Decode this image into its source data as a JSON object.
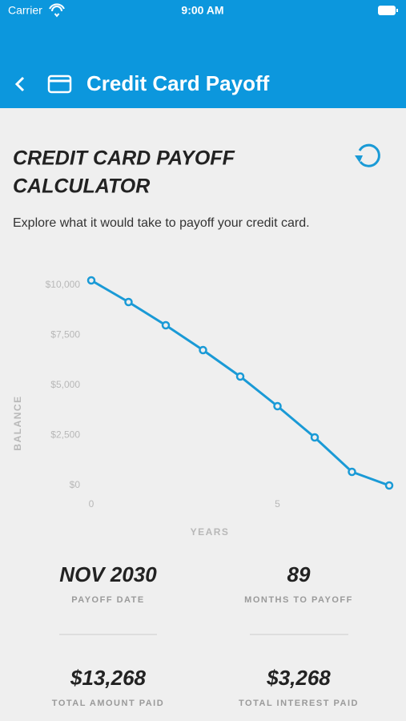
{
  "status_bar": {
    "carrier": "Carrier",
    "time": "9:00 AM"
  },
  "nav": {
    "title": "Credit Card Payoff"
  },
  "heading": "CREDIT CARD PAYOFF\nCALCULATOR",
  "heading_lines": [
    "CREDIT CARD PAYOFF",
    "CALCULATOR"
  ],
  "description": "Explore what it would take to payoff your credit card.",
  "chart_data": {
    "type": "line",
    "x_label": "YEARS",
    "y_label": "BALANCE",
    "x": [
      0,
      1,
      2,
      3,
      4,
      5,
      6,
      7,
      8
    ],
    "series": [
      {
        "name": "Balance",
        "color": "#1a9ad6",
        "values": [
          10240,
          9160,
          8000,
          6760,
          5440,
          3960,
          2400,
          680,
          0
        ]
      }
    ],
    "xlim": [
      0,
      8
    ],
    "xticks": [
      0,
      5
    ],
    "ylim": [
      0,
      10300
    ],
    "yticks": [
      {
        "value": 0,
        "label": "$0"
      },
      {
        "value": 2500,
        "label": "$2,500"
      },
      {
        "value": 5000,
        "label": "$5,000"
      },
      {
        "value": 7500,
        "label": "$7,500"
      },
      {
        "value": 10000,
        "label": "$10,000"
      }
    ]
  },
  "stats": [
    {
      "value": "NOV 2030",
      "label": "PAYOFF DATE"
    },
    {
      "value": "89",
      "label": "MONTHS TO PAYOFF"
    },
    {
      "value": "$13,268",
      "label": "TOTAL AMOUNT PAID"
    },
    {
      "value": "$3,268",
      "label": "TOTAL INTEREST PAID"
    }
  ]
}
